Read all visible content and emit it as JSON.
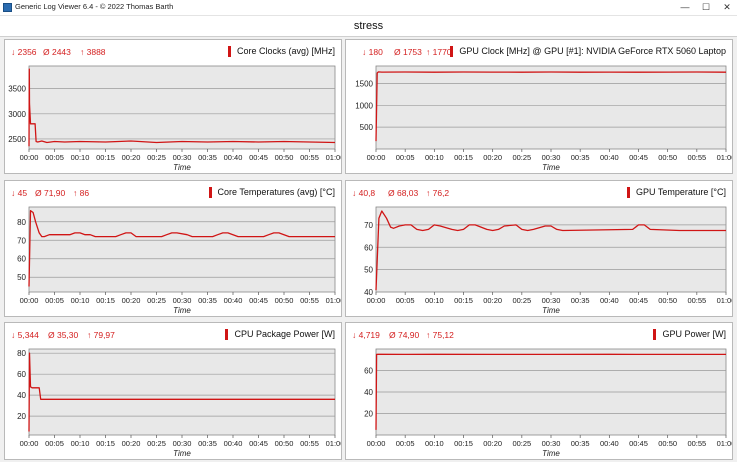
{
  "window": {
    "title": "Generic Log Viewer 6.4 - © 2022 Thomas Barth",
    "minimize": "—",
    "maximize": "☐",
    "close": "✕"
  },
  "header": {
    "title": "stress"
  },
  "colors": {
    "series": "#d01515",
    "stats": "#d42020",
    "plot_bg": "#e8e8e8",
    "grid": "#9a9a9a"
  },
  "panels": [
    {
      "title": "Core Clocks (avg) [MHz]",
      "stats": {
        "min": "↓ 2356",
        "avg": "Ø 2443",
        "max": "↑ 3888"
      },
      "chart_data": {
        "type": "line",
        "xlabel": "Time",
        "xticks": [
          "00:00",
          "00:05",
          "00:10",
          "00:15",
          "00:20",
          "00:25",
          "00:30",
          "00:35",
          "00:40",
          "00:45",
          "00:50",
          "00:55",
          "01:00"
        ],
        "yticks": [
          2500,
          3000,
          3500
        ],
        "ylim": [
          2300,
          3950
        ],
        "grid": true,
        "series": [
          {
            "x": [
              0,
              0.05,
              0.1,
              0.3,
              0.5,
              0.8,
              1.0,
              1.2,
              1.4,
              1.7,
              2.5,
              3.5,
              5,
              7,
              10,
              15,
              20,
              25,
              30,
              35,
              40,
              45,
              50,
              55,
              60
            ],
            "y": [
              2356,
              3888,
              3200,
              2800,
              2800,
              2800,
              2800,
              2800,
              2450,
              2440,
              2460,
              2430,
              2450,
              2440,
              2450,
              2440,
              2460,
              2430,
              2450,
              2440,
              2450,
              2440,
              2450,
              2440,
              2430
            ]
          }
        ]
      }
    },
    {
      "title": "GPU Clock [MHz] @ GPU [#1]: NVIDIA GeForce RTX 5060 Laptop",
      "stats": {
        "min": "↓ 180",
        "avg": "Ø 1753",
        "max": "↑ 1770"
      },
      "chart_data": {
        "type": "line",
        "xlabel": "Time",
        "xticks": [
          "00:00",
          "00:05",
          "00:10",
          "00:15",
          "00:20",
          "00:25",
          "00:30",
          "00:35",
          "00:40",
          "00:45",
          "00:50",
          "00:55",
          "01:00"
        ],
        "yticks": [
          500,
          1000,
          1500
        ],
        "ylim": [
          0,
          1900
        ],
        "grid": true,
        "series": [
          {
            "x": [
              0,
              0.2,
              0.4,
              1,
              5,
              10,
              15,
              20,
              25,
              30,
              35,
              40,
              45,
              50,
              55,
              60
            ],
            "y": [
              180,
              1740,
              1765,
              1760,
              1762,
              1758,
              1763,
              1760,
              1757,
              1762,
              1759,
              1761,
              1758,
              1760,
              1762,
              1757
            ]
          }
        ]
      }
    },
    {
      "title": "Core Temperatures (avg) [°C]",
      "stats": {
        "min": "↓ 45",
        "avg": "Ø 71,90",
        "max": "↑ 86"
      },
      "chart_data": {
        "type": "line",
        "xlabel": "Time",
        "xticks": [
          "00:00",
          "00:05",
          "00:10",
          "00:15",
          "00:20",
          "00:25",
          "00:30",
          "00:35",
          "00:40",
          "00:45",
          "00:50",
          "00:55",
          "01:00"
        ],
        "yticks": [
          50,
          60,
          70,
          80
        ],
        "ylim": [
          42,
          88
        ],
        "grid": true,
        "series": [
          {
            "x": [
              0,
              0.3,
              0.8,
              1.3,
              2,
              2.5,
              3,
              4,
              5,
              8,
              9,
              10,
              11,
              12,
              13,
              17,
              18,
              19,
              20,
              21,
              26,
              27,
              28,
              29,
              31,
              32,
              36,
              37,
              38,
              39,
              40,
              41,
              46,
              47,
              48,
              49,
              51,
              60
            ],
            "y": [
              45,
              86,
              85,
              80,
              74,
              72,
              72,
              73,
              73,
              73,
              74,
              74,
              73,
              73,
              72,
              72,
              73,
              74,
              74,
              72,
              72,
              73,
              74,
              74,
              73,
              72,
              72,
              73,
              74,
              74,
              73,
              72,
              72,
              73,
              74,
              74,
              72,
              72
            ]
          }
        ]
      }
    },
    {
      "title": "GPU Temperature [°C]",
      "stats": {
        "min": "↓ 40,8",
        "avg": "Ø 68,03",
        "max": "↑ 76,2"
      },
      "chart_data": {
        "type": "line",
        "xlabel": "Time",
        "xticks": [
          "00:00",
          "00:05",
          "00:10",
          "00:15",
          "00:20",
          "00:25",
          "00:30",
          "00:35",
          "00:40",
          "00:45",
          "00:50",
          "00:55",
          "01:00"
        ],
        "yticks": [
          40,
          50,
          60,
          70
        ],
        "ylim": [
          40,
          78
        ],
        "grid": true,
        "series": [
          {
            "x": [
              0,
              0.5,
              1,
              1.8,
              2.5,
              3,
              4,
              5,
              6,
              7,
              8,
              9,
              10,
              11,
              13,
              14,
              15,
              16,
              17,
              19,
              20,
              21,
              22,
              24,
              25,
              26,
              27,
              29,
              30,
              31,
              32,
              44,
              45,
              46,
              47,
              52,
              60
            ],
            "y": [
              40.8,
              73,
              76.2,
              73,
              69,
              68.5,
              69.5,
              70,
              70,
              68,
              67.5,
              68,
              70,
              69.5,
              68,
              67.5,
              68,
              70,
              70,
              68,
              67.5,
              68,
              69.5,
              70,
              68,
              67.5,
              68,
              69.5,
              69.5,
              68,
              67.5,
              68,
              70,
              70,
              68,
              67.5,
              67.5
            ]
          }
        ]
      }
    },
    {
      "title": "CPU Package Power [W]",
      "stats": {
        "min": "↓ 5,344",
        "avg": "Ø 35,30",
        "max": "↑ 79,97"
      },
      "chart_data": {
        "type": "line",
        "xlabel": "Time",
        "xticks": [
          "00:00",
          "00:05",
          "00:10",
          "00:15",
          "00:20",
          "00:25",
          "00:30",
          "00:35",
          "00:40",
          "00:45",
          "00:50",
          "00:55",
          "01:00"
        ],
        "yticks": [
          20,
          40,
          60,
          80
        ],
        "ylim": [
          2,
          84
        ],
        "grid": true,
        "series": [
          {
            "x": [
              0,
              0.1,
              0.3,
              0.6,
              1.5,
              2.0,
              2.3,
              5,
              10,
              20,
              30,
              40,
              50,
              60
            ],
            "y": [
              5.3,
              79.97,
              48,
              47,
              47,
              47,
              36,
              36,
              36,
              36,
              36,
              36,
              36,
              36
            ]
          }
        ]
      }
    },
    {
      "title": "GPU Power [W]",
      "stats": {
        "min": "↓ 4,719",
        "avg": "Ø 74,90",
        "max": "↑ 75,12"
      },
      "chart_data": {
        "type": "line",
        "xlabel": "Time",
        "xticks": [
          "00:00",
          "00:05",
          "00:10",
          "00:15",
          "00:20",
          "00:25",
          "00:30",
          "00:35",
          "00:40",
          "00:45",
          "00:50",
          "00:55",
          "01:00"
        ],
        "yticks": [
          20,
          40,
          60
        ],
        "ylim": [
          0,
          80
        ],
        "grid": true,
        "series": [
          {
            "x": [
              0,
              0.1,
              0.3,
              5,
              10,
              20,
              30,
              40,
              50,
              60
            ],
            "y": [
              4.7,
              75,
              75.1,
              75,
              75.1,
              75,
              75,
              75.1,
              75,
              75
            ]
          }
        ]
      }
    }
  ]
}
